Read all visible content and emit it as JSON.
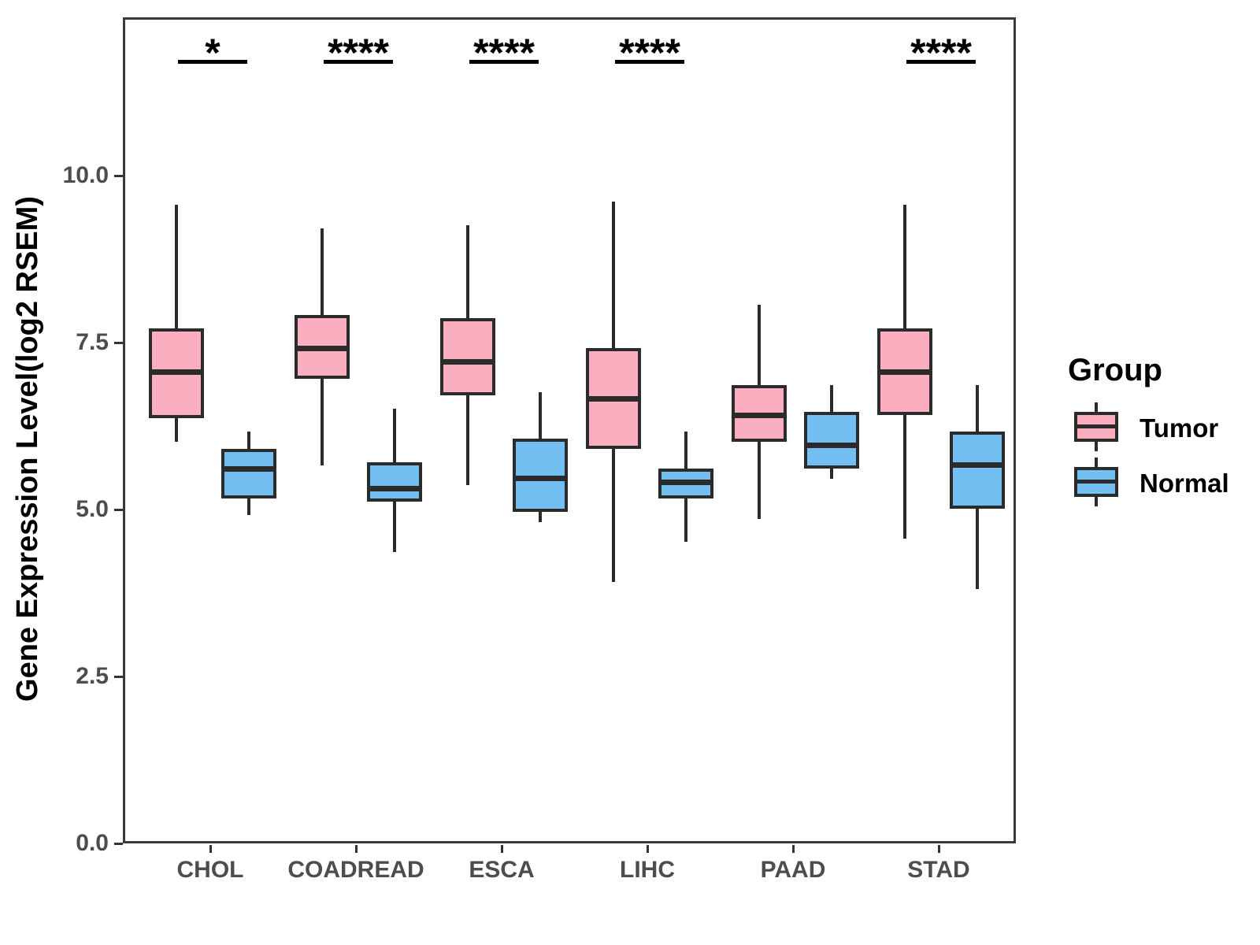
{
  "chart_data": {
    "type": "grouped_boxplot",
    "title": "",
    "xlabel": "",
    "ylabel": "Gene Expression Level(log2 RSEM)",
    "ylim": [
      0,
      12.4
    ],
    "grid": false,
    "y_ticks": [
      {
        "value": 0.0,
        "label": "0.0"
      },
      {
        "value": 2.5,
        "label": "2.5"
      },
      {
        "value": 5.0,
        "label": "5.0"
      },
      {
        "value": 7.5,
        "label": "7.5"
      },
      {
        "value": 10.0,
        "label": "10.0"
      }
    ],
    "categories": [
      "CHOL",
      "COADREAD",
      "ESCA",
      "LIHC",
      "PAAD",
      "STAD"
    ],
    "series": [
      {
        "name": "Tumor",
        "color": "#FCAEC1",
        "boxes": [
          {
            "category": "CHOL",
            "whisker_low": 6.05,
            "q1": 6.4,
            "median": 7.1,
            "q3": 7.75,
            "whisker_high": 9.6
          },
          {
            "category": "COADREAD",
            "whisker_low": 5.7,
            "q1": 7.0,
            "median": 7.45,
            "q3": 7.95,
            "whisker_high": 9.25
          },
          {
            "category": "ESCA",
            "whisker_low": 5.4,
            "q1": 6.75,
            "median": 7.25,
            "q3": 7.9,
            "whisker_high": 9.3
          },
          {
            "category": "LIHC",
            "whisker_low": 3.95,
            "q1": 5.95,
            "median": 6.7,
            "q3": 7.45,
            "whisker_high": 9.65
          },
          {
            "category": "PAAD",
            "whisker_low": 4.9,
            "q1": 6.05,
            "median": 6.45,
            "q3": 6.9,
            "whisker_high": 8.1
          },
          {
            "category": "STAD",
            "whisker_low": 4.6,
            "q1": 6.45,
            "median": 7.1,
            "q3": 7.75,
            "whisker_high": 9.6
          }
        ]
      },
      {
        "name": "Normal",
        "color": "#74BFF2",
        "boxes": [
          {
            "category": "CHOL",
            "whisker_low": 4.95,
            "q1": 5.2,
            "median": 5.65,
            "q3": 5.95,
            "whisker_high": 6.2
          },
          {
            "category": "COADREAD",
            "whisker_low": 4.4,
            "q1": 5.15,
            "median": 5.35,
            "q3": 5.75,
            "whisker_high": 6.55
          },
          {
            "category": "ESCA",
            "whisker_low": 4.85,
            "q1": 5.0,
            "median": 5.5,
            "q3": 6.1,
            "whisker_high": 6.8
          },
          {
            "category": "LIHC",
            "whisker_low": 4.55,
            "q1": 5.2,
            "median": 5.45,
            "q3": 5.65,
            "whisker_high": 6.2
          },
          {
            "category": "PAAD",
            "whisker_low": 5.5,
            "q1": 5.65,
            "median": 6.0,
            "q3": 6.5,
            "whisker_high": 6.9
          },
          {
            "category": "STAD",
            "whisker_low": 3.85,
            "q1": 5.05,
            "median": 5.7,
            "q3": 6.2,
            "whisker_high": 6.9
          }
        ]
      }
    ],
    "significance": [
      {
        "category": "CHOL",
        "label": "*"
      },
      {
        "category": "COADREAD",
        "label": "****"
      },
      {
        "category": "ESCA",
        "label": "****"
      },
      {
        "category": "LIHC",
        "label": "****"
      },
      {
        "category": "STAD",
        "label": "****"
      }
    ],
    "legend": {
      "title": "Group",
      "entries": [
        {
          "label": "Tumor",
          "color": "#FCAEC1"
        },
        {
          "label": "Normal",
          "color": "#74BFF2"
        }
      ]
    },
    "colors": {
      "box_border": "#2b2b2b",
      "panel_border": "#3a3a3a",
      "tick_text": "#4d4d4d",
      "significance": "#000000"
    }
  }
}
